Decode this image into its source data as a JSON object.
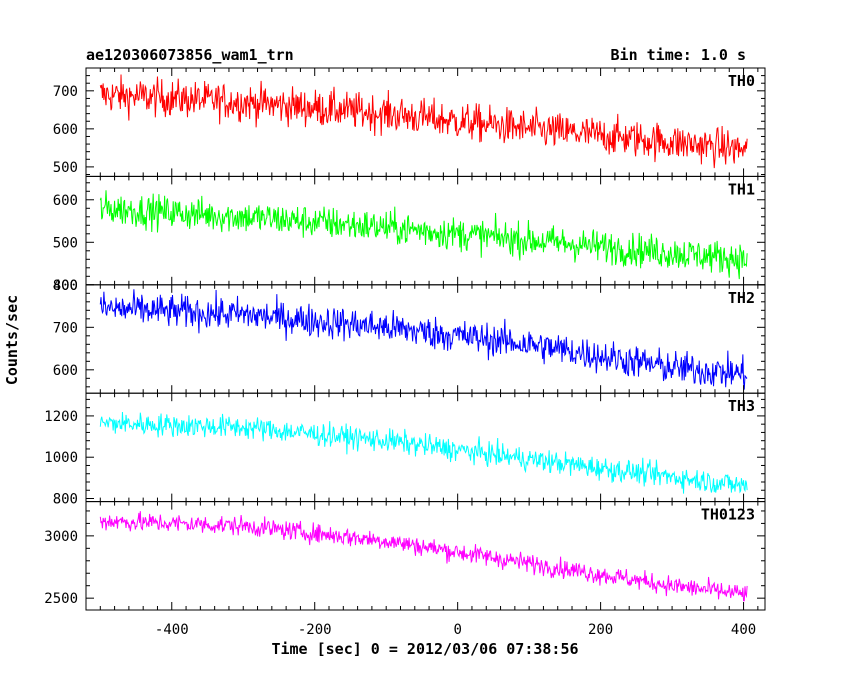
{
  "chart_data": {
    "type": "line",
    "title": "ae120306073856_wam1_trn",
    "subtitle": "Bin time: 1.0 s",
    "xlabel": "Time [sec] 0 = 2012/03/06 07:38:56",
    "ylabel": "Counts/sec",
    "xlim": [
      -520,
      430
    ],
    "xticks": [
      -400,
      -200,
      0,
      200,
      400
    ],
    "x_range": [
      -500,
      405
    ],
    "bin_seconds": 1.0,
    "panels": [
      {
        "name": "TH0",
        "color": "#ff0000",
        "ylim": [
          475,
          760
        ],
        "yticks": [
          500,
          600,
          700
        ],
        "trend": [
          {
            "x": -500,
            "y": 690
          },
          {
            "x": -300,
            "y": 670
          },
          {
            "x": -100,
            "y": 640
          },
          {
            "x": 100,
            "y": 600
          },
          {
            "x": 300,
            "y": 565
          },
          {
            "x": 405,
            "y": 545
          }
        ],
        "noise": 35
      },
      {
        "name": "TH1",
        "color": "#00ff00",
        "ylim": [
          400,
          655
        ],
        "yticks": [
          400,
          500,
          600
        ],
        "trend": [
          {
            "x": -500,
            "y": 580
          },
          {
            "x": -300,
            "y": 560
          },
          {
            "x": -100,
            "y": 535
          },
          {
            "x": 100,
            "y": 505
          },
          {
            "x": 300,
            "y": 475
          },
          {
            "x": 405,
            "y": 460
          }
        ],
        "noise": 28
      },
      {
        "name": "TH2",
        "color": "#0000ff",
        "ylim": [
          545,
          800
        ],
        "yticks": [
          600,
          700,
          800
        ],
        "trend": [
          {
            "x": -500,
            "y": 745
          },
          {
            "x": -300,
            "y": 730
          },
          {
            "x": -100,
            "y": 700
          },
          {
            "x": 100,
            "y": 660
          },
          {
            "x": 300,
            "y": 605
          },
          {
            "x": 405,
            "y": 590
          }
        ],
        "noise": 28
      },
      {
        "name": "TH3",
        "color": "#00ffff",
        "ylim": [
          785,
          1310
        ],
        "yticks": [
          800,
          1000,
          1200
        ],
        "trend": [
          {
            "x": -500,
            "y": 1165
          },
          {
            "x": -300,
            "y": 1145
          },
          {
            "x": -100,
            "y": 1080
          },
          {
            "x": 100,
            "y": 990
          },
          {
            "x": 300,
            "y": 905
          },
          {
            "x": 405,
            "y": 860
          }
        ],
        "noise": 40
      },
      {
        "name": "TH0123",
        "color": "#ff00ff",
        "ylim": [
          2405,
          3275
        ],
        "yticks": [
          2500,
          3000
        ],
        "trend": [
          {
            "x": -500,
            "y": 3120
          },
          {
            "x": -300,
            "y": 3080
          },
          {
            "x": -100,
            "y": 2960
          },
          {
            "x": 100,
            "y": 2780
          },
          {
            "x": 300,
            "y": 2600
          },
          {
            "x": 405,
            "y": 2530
          }
        ],
        "noise": 55
      }
    ]
  }
}
